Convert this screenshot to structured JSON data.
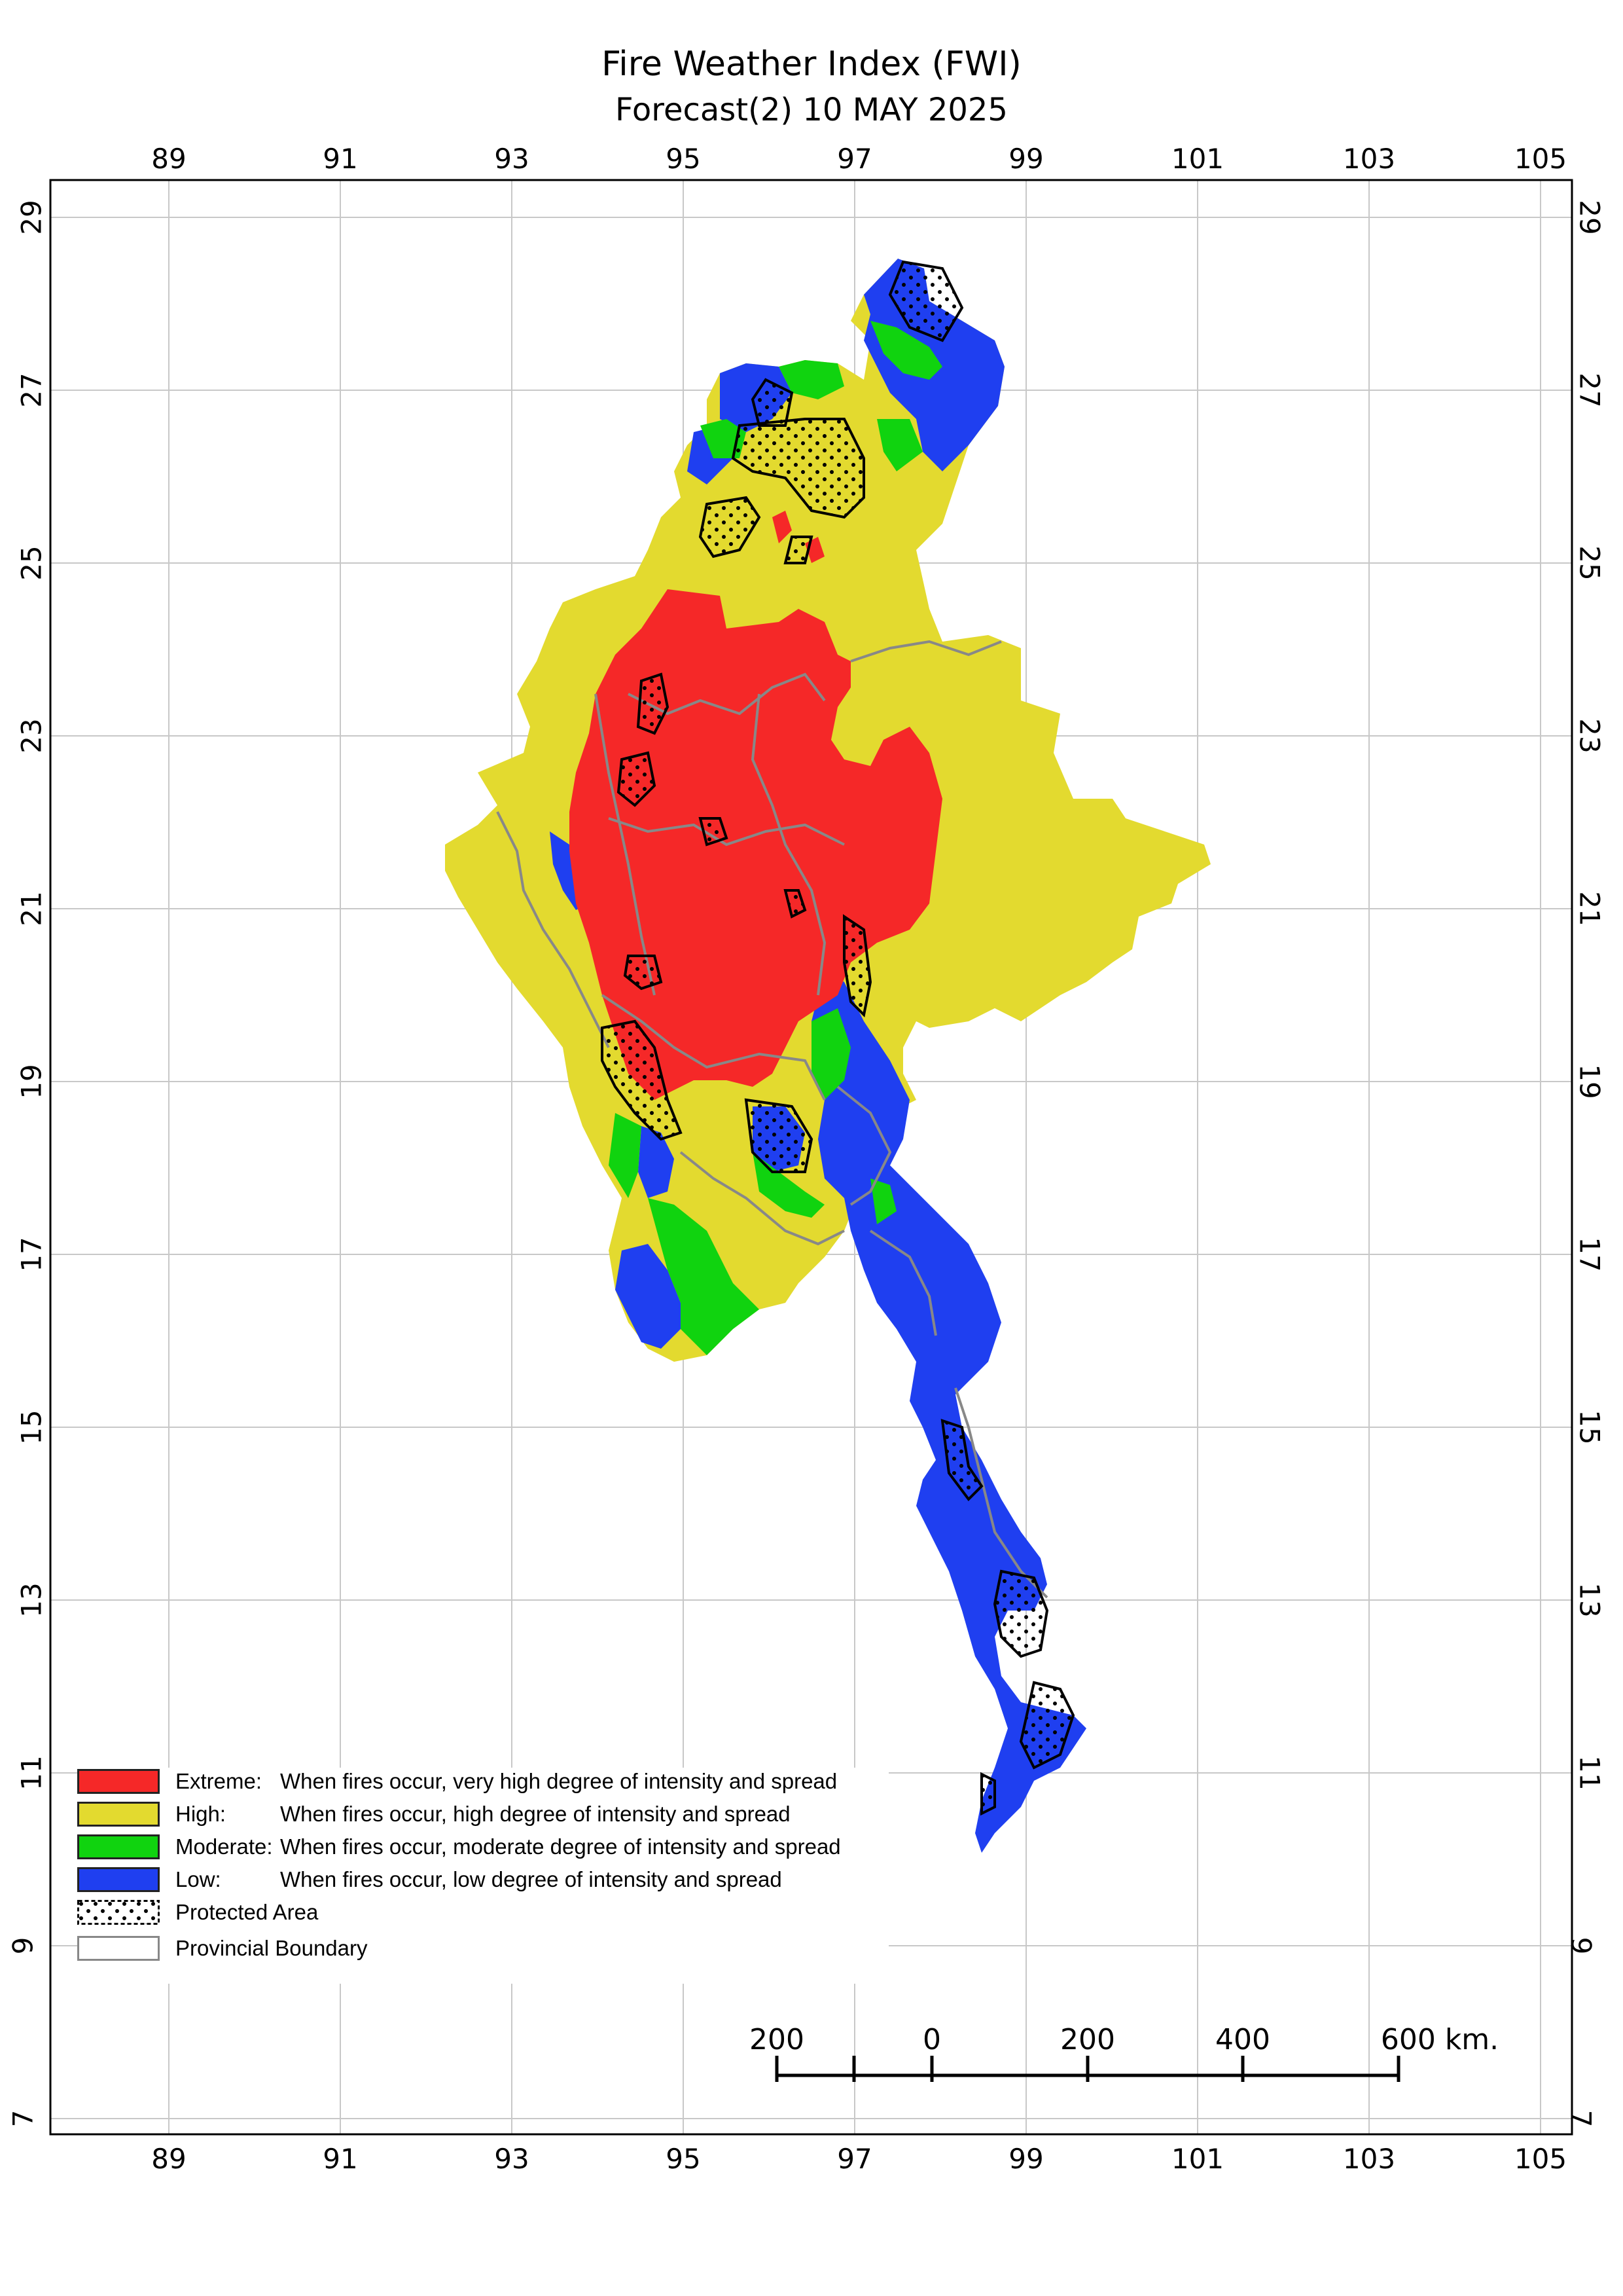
{
  "title": "Fire Weather Index (FWI)",
  "subtitle": "Forecast(2) 10 MAY 2025",
  "axes": {
    "longitude_ticks": [
      "89",
      "91",
      "93",
      "95",
      "97",
      "99",
      "101",
      "103",
      "105"
    ],
    "latitude_ticks": [
      "29",
      "27",
      "25",
      "23",
      "21",
      "19",
      "17",
      "15",
      "13",
      "11",
      "9",
      "7"
    ]
  },
  "legend": [
    {
      "key": "extreme",
      "name": "Extreme:",
      "desc": "When fires occur, very high degree of intensity and spread",
      "color": "#f52828"
    },
    {
      "key": "high",
      "name": "High:",
      "desc": "When fires occur, high degree of intensity and spread",
      "color": "#e3da2f"
    },
    {
      "key": "moderate",
      "name": "Moderate:",
      "desc": "When fires occur, moderate degree of intensity and spread",
      "color": "#10d30f"
    },
    {
      "key": "low",
      "name": "Low:",
      "desc": "When fires occur, low degree of intensity and spread",
      "color": "#1f3ff0"
    },
    {
      "key": "protected",
      "name": "Protected Area",
      "desc": "",
      "color": "#ffffff"
    },
    {
      "key": "boundary",
      "name": "Provincial Boundary",
      "desc": "",
      "color": "#888888"
    }
  ],
  "scale_bar": {
    "labels": [
      "200",
      "0",
      "200",
      "400",
      "600 km."
    ]
  },
  "colors": {
    "extreme": "#f52828",
    "high": "#e3da2f",
    "moderate": "#10d30f",
    "low": "#1f3ff0",
    "boundary": "#888888",
    "grid": "#c8c8c8"
  }
}
